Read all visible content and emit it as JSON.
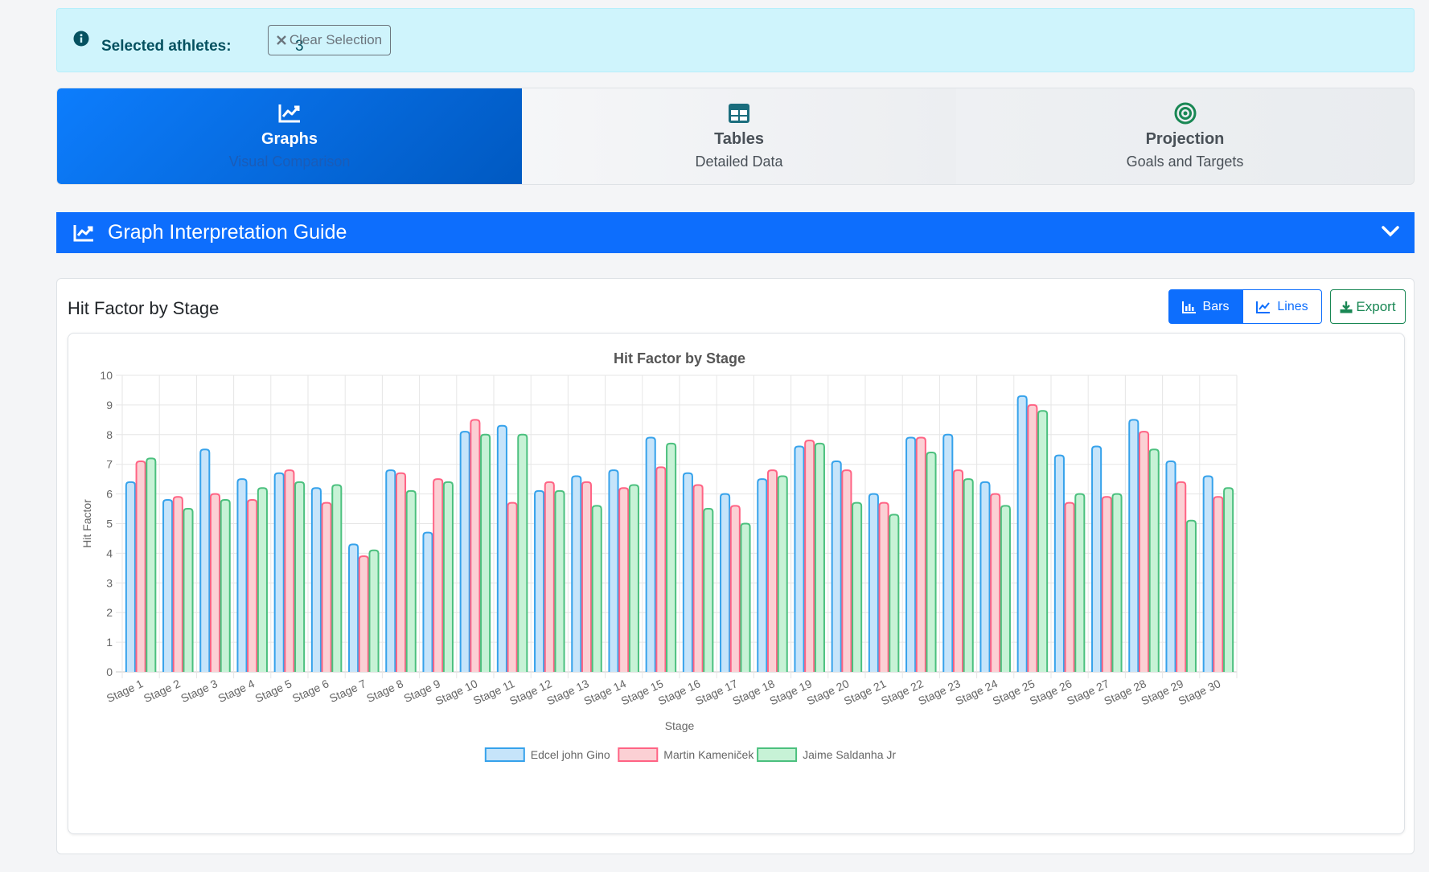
{
  "selection": {
    "label": "Selected athletes:",
    "count": "3",
    "clear_label": "Clear Selection"
  },
  "tabs": [
    {
      "title": "Graphs",
      "subtitle": "Visual Comparison",
      "icon": "chart-line-icon",
      "active": true
    },
    {
      "title": "Tables",
      "subtitle": "Detailed Data",
      "icon": "table-icon",
      "active": false
    },
    {
      "title": "Projection",
      "subtitle": "Goals and Targets",
      "icon": "target-icon",
      "active": false
    }
  ],
  "guide": {
    "title": "Graph Interpretation Guide"
  },
  "card": {
    "title": "Hit Factor by Stage",
    "bars_label": "Bars",
    "lines_label": "Lines",
    "export_label": "Export"
  },
  "colors": {
    "primary": "#0d6efd",
    "success": "#198754",
    "info_bg": "#cff4fc"
  },
  "chart_data": {
    "type": "bar",
    "title": "Hit Factor by Stage",
    "xlabel": "Stage",
    "ylabel": "Hit Factor",
    "ylim": [
      0,
      10
    ],
    "yticks": [
      0,
      1,
      2,
      3,
      4,
      5,
      6,
      7,
      8,
      9,
      10
    ],
    "grid": true,
    "legend_position": "bottom",
    "categories": [
      "Stage 1",
      "Stage 2",
      "Stage 3",
      "Stage 4",
      "Stage 5",
      "Stage 6",
      "Stage 7",
      "Stage 8",
      "Stage 9",
      "Stage 10",
      "Stage 11",
      "Stage 12",
      "Stage 13",
      "Stage 14",
      "Stage 15",
      "Stage 16",
      "Stage 17",
      "Stage 18",
      "Stage 19",
      "Stage 20",
      "Stage 21",
      "Stage 22",
      "Stage 23",
      "Stage 24",
      "Stage 25",
      "Stage 26",
      "Stage 27",
      "Stage 28",
      "Stage 29",
      "Stage 30"
    ],
    "series": [
      {
        "name": "Edcel john Gino",
        "color": "#36a2eb",
        "fill": "#c6e4fa",
        "values": [
          6.4,
          5.8,
          7.5,
          6.5,
          6.7,
          6.2,
          4.3,
          6.8,
          4.7,
          8.1,
          8.3,
          6.1,
          6.6,
          6.8,
          7.9,
          6.7,
          6.0,
          6.5,
          7.6,
          7.1,
          6.0,
          7.9,
          8.0,
          6.4,
          9.3,
          7.3,
          7.6,
          8.5,
          7.1,
          6.6
        ]
      },
      {
        "name": "Martin Kameniček",
        "color": "#ff6384",
        "fill": "#fbd0d4",
        "values": [
          7.1,
          5.9,
          6.0,
          5.8,
          6.8,
          5.7,
          3.9,
          6.7,
          6.5,
          8.5,
          5.7,
          6.4,
          6.4,
          6.2,
          6.9,
          6.3,
          5.6,
          6.8,
          7.8,
          6.8,
          5.7,
          7.9,
          6.8,
          6.0,
          9.0,
          5.7,
          5.9,
          8.1,
          6.4,
          5.9
        ]
      },
      {
        "name": "Jaime Saldanha Jr",
        "color": "#4bc07e",
        "fill": "#c7f2d6",
        "values": [
          7.2,
          5.5,
          5.8,
          6.2,
          6.4,
          6.3,
          4.1,
          6.1,
          6.4,
          8.0,
          8.0,
          6.1,
          5.6,
          6.3,
          7.7,
          5.5,
          5.0,
          6.6,
          7.7,
          5.7,
          5.3,
          7.4,
          6.5,
          5.6,
          8.8,
          6.0,
          6.0,
          7.5,
          5.1,
          6.2
        ]
      }
    ]
  }
}
